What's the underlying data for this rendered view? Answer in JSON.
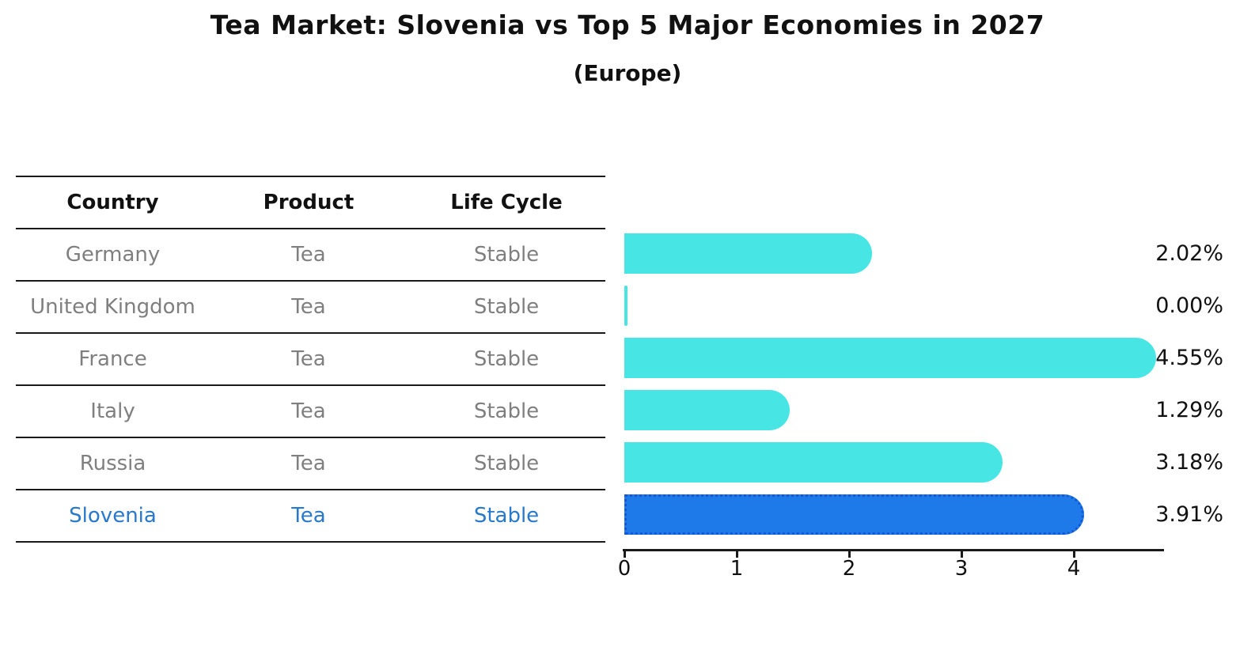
{
  "title": "Tea Market: Slovenia vs Top 5 Major Economies in 2027",
  "subtitle": "(Europe)",
  "table": {
    "headers": [
      "Country",
      "Product",
      "Life Cycle"
    ],
    "rows": [
      {
        "country": "Germany",
        "product": "Tea",
        "life_cycle": "Stable",
        "highlight": false
      },
      {
        "country": "United Kingdom",
        "product": "Tea",
        "life_cycle": "Stable",
        "highlight": false
      },
      {
        "country": "France",
        "product": "Tea",
        "life_cycle": "Stable",
        "highlight": false
      },
      {
        "country": "Italy",
        "product": "Tea",
        "life_cycle": "Stable",
        "highlight": false
      },
      {
        "country": "Russia",
        "product": "Tea",
        "life_cycle": "Stable",
        "highlight": false
      },
      {
        "country": "Slovenia",
        "product": "Tea",
        "life_cycle": "Stable",
        "highlight": true
      }
    ]
  },
  "chart_data": {
    "type": "bar",
    "orientation": "horizontal",
    "title": "Tea Market: Slovenia vs Top 5 Major Economies in 2027",
    "subtitle": "(Europe)",
    "categories": [
      "Germany",
      "United Kingdom",
      "France",
      "Italy",
      "Russia",
      "Slovenia"
    ],
    "values": [
      2.02,
      0.0,
      4.55,
      1.29,
      3.18,
      3.91
    ],
    "value_labels": [
      "2.02%",
      "0.00%",
      "4.55%",
      "1.29%",
      "3.18%",
      "3.91%"
    ],
    "unit": "percent",
    "xlabel": "",
    "ylabel": "",
    "xlim": [
      0,
      4.8
    ],
    "x_ticks": [
      "0",
      "1",
      "2",
      "3",
      "4"
    ],
    "grid": false,
    "legend": "none",
    "highlight_category": "Slovenia",
    "colors": {
      "bar": "#48E5E5",
      "highlight_bar": "#1D7AE8",
      "highlight_border": "#1458D8",
      "row_text": "#7F7F7F",
      "highlight_text": "#2878CB",
      "header_text": "#111111",
      "value_text": "#111111"
    }
  }
}
